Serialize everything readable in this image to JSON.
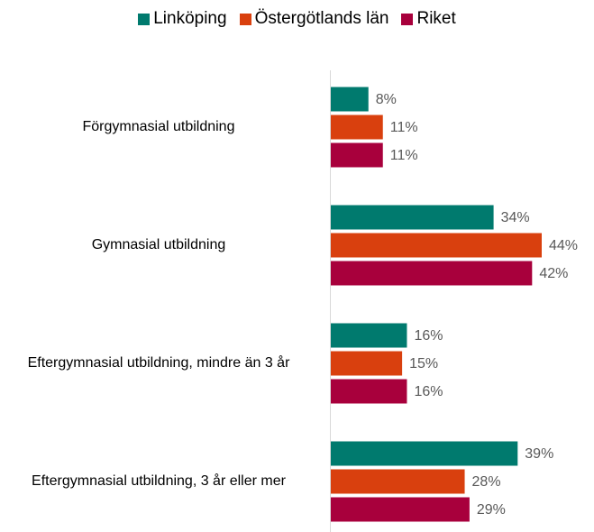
{
  "chart_data": {
    "type": "bar",
    "orientation": "horizontal",
    "categories": [
      "Förgymnasial utbildning",
      "Gymnasial utbildning",
      "Eftergymnasial utbildning, mindre än 3 år",
      "Eftergymnasial utbildning, 3 år eller mer"
    ],
    "series": [
      {
        "name": "Linköping",
        "color": "#007a6e",
        "values": [
          8,
          34,
          16,
          39
        ],
        "value_labels": [
          "8%",
          "34%",
          "16%",
          "39%"
        ]
      },
      {
        "name": "Östergötlands län",
        "color": "#d9400e",
        "values": [
          11,
          44,
          15,
          28
        ],
        "value_labels": [
          "11%",
          "44%",
          "15%",
          "28%"
        ]
      },
      {
        "name": "Riket",
        "color": "#a8003c",
        "values": [
          11,
          42,
          16,
          29
        ],
        "value_labels": [
          "11%",
          "42%",
          "16%",
          "29%"
        ]
      }
    ],
    "legend": "top"
  }
}
